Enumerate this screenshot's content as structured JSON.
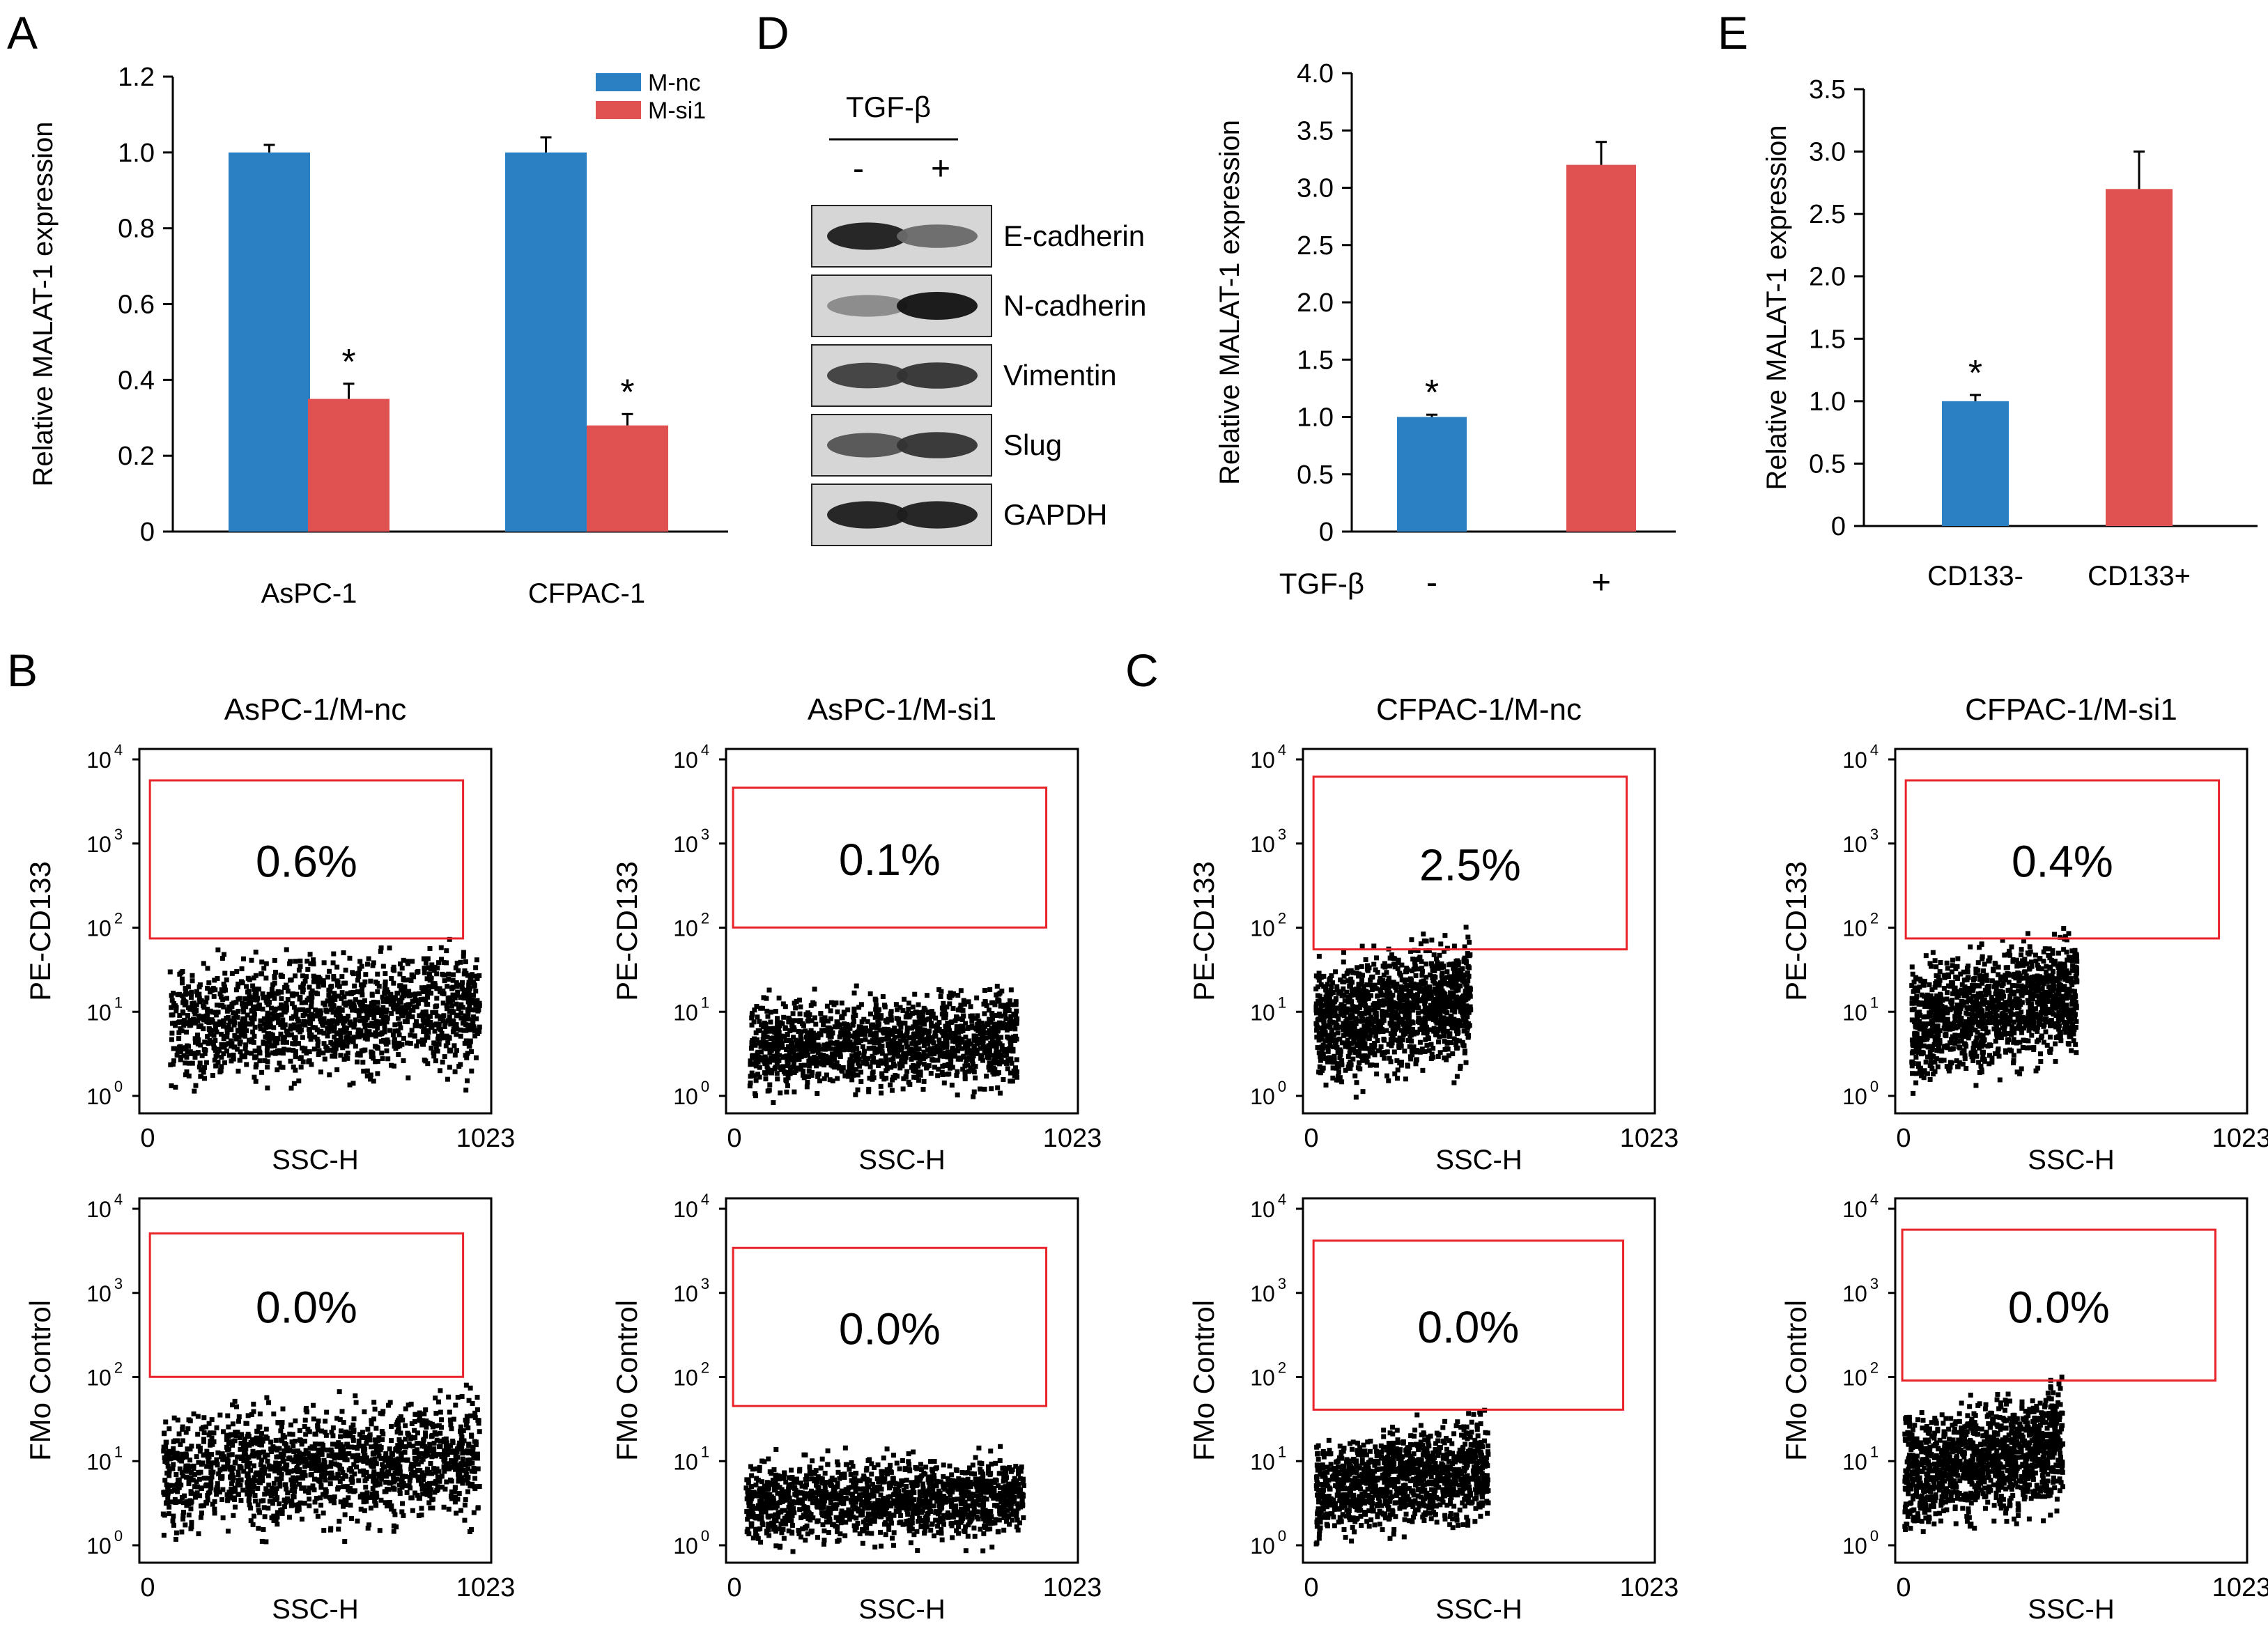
{
  "colors": {
    "blue": "#2b7fc3",
    "red": "#e05252",
    "gate": "#e8242a",
    "dots": "#000000",
    "axis": "#000000"
  },
  "panel_letters": {
    "A": "A",
    "B": "B",
    "C": "C",
    "D": "D",
    "E": "E"
  },
  "chart_data": [
    {
      "id": "A",
      "type": "bar",
      "ylabel": "Relative MALAT-1 expression",
      "ylim": [
        0,
        1.2
      ],
      "yticks": [
        "0",
        "0.2",
        "0.4",
        "0.6",
        "0.8",
        "1.0",
        "1.2"
      ],
      "categories": [
        "AsPC-1",
        "CFPAC-1"
      ],
      "series": [
        {
          "name": "M-nc",
          "values": [
            1.0,
            1.0
          ],
          "errors": [
            0.02,
            0.04
          ],
          "stars": [
            "",
            ""
          ]
        },
        {
          "name": "M-si1",
          "values": [
            0.35,
            0.28
          ],
          "errors": [
            0.04,
            0.03
          ],
          "stars": [
            "*",
            "*"
          ]
        }
      ],
      "legend": "top-right"
    },
    {
      "id": "D",
      "type": "bar",
      "ylabel": "Relative MALAT-1 expression",
      "ylim": [
        0,
        4.0
      ],
      "yticks": [
        "0",
        "0.5",
        "1.0",
        "1.5",
        "2.0",
        "2.5",
        "3.0",
        "3.5",
        "4.0"
      ],
      "row_label": "TGF-β",
      "categories": [
        "-",
        "+"
      ],
      "values": [
        1.0,
        3.2
      ],
      "errors": [
        0.02,
        0.2
      ],
      "stars": [
        "*",
        ""
      ]
    },
    {
      "id": "E",
      "type": "bar",
      "ylabel": "Relative MALAT-1 expression",
      "ylim": [
        0,
        3.5
      ],
      "yticks": [
        "0",
        "0.5",
        "1.0",
        "1.5",
        "2.0",
        "2.5",
        "3.0",
        "3.5"
      ],
      "categories": [
        "CD133-",
        "CD133+"
      ],
      "values": [
        1.0,
        2.7
      ],
      "errors": [
        0.05,
        0.3
      ],
      "stars": [
        "*",
        ""
      ]
    },
    {
      "id": "BC",
      "type": "scatter",
      "xlabel": "SSC-H",
      "x_ticks": [
        "0",
        "1023"
      ],
      "y_ticks": [
        [
          "10",
          "0"
        ],
        [
          "10",
          "1"
        ],
        [
          "10",
          "2"
        ],
        [
          "10",
          "3"
        ],
        [
          "10",
          "4"
        ]
      ],
      "plots": [
        {
          "title": "AsPC-1/M-nc",
          "ylabel": "PE-CD133",
          "gate_percent": "0.6%"
        },
        {
          "title": "AsPC-1/M-si1",
          "ylabel": "PE-CD133",
          "gate_percent": "0.1%"
        },
        {
          "title": "CFPAC-1/M-nc",
          "ylabel": "PE-CD133",
          "gate_percent": "2.5%"
        },
        {
          "title": "CFPAC-1/M-si1",
          "ylabel": "PE-CD133",
          "gate_percent": "0.4%"
        },
        {
          "ylabel": "FMo Control",
          "gate_percent": "0.0%"
        },
        {
          "ylabel": "FMo Control",
          "gate_percent": "0.0%"
        },
        {
          "ylabel": "FMo Control",
          "gate_percent": "0.0%"
        },
        {
          "ylabel": "FMo Control",
          "gate_percent": "0.0%"
        }
      ]
    }
  ],
  "western_blot": {
    "treatment_label": "TGF-β",
    "lanes": [
      "-",
      "+"
    ],
    "proteins": [
      "E-cadherin",
      "N-cadherin",
      "Vimentin",
      "Slug",
      "GAPDH"
    ]
  }
}
